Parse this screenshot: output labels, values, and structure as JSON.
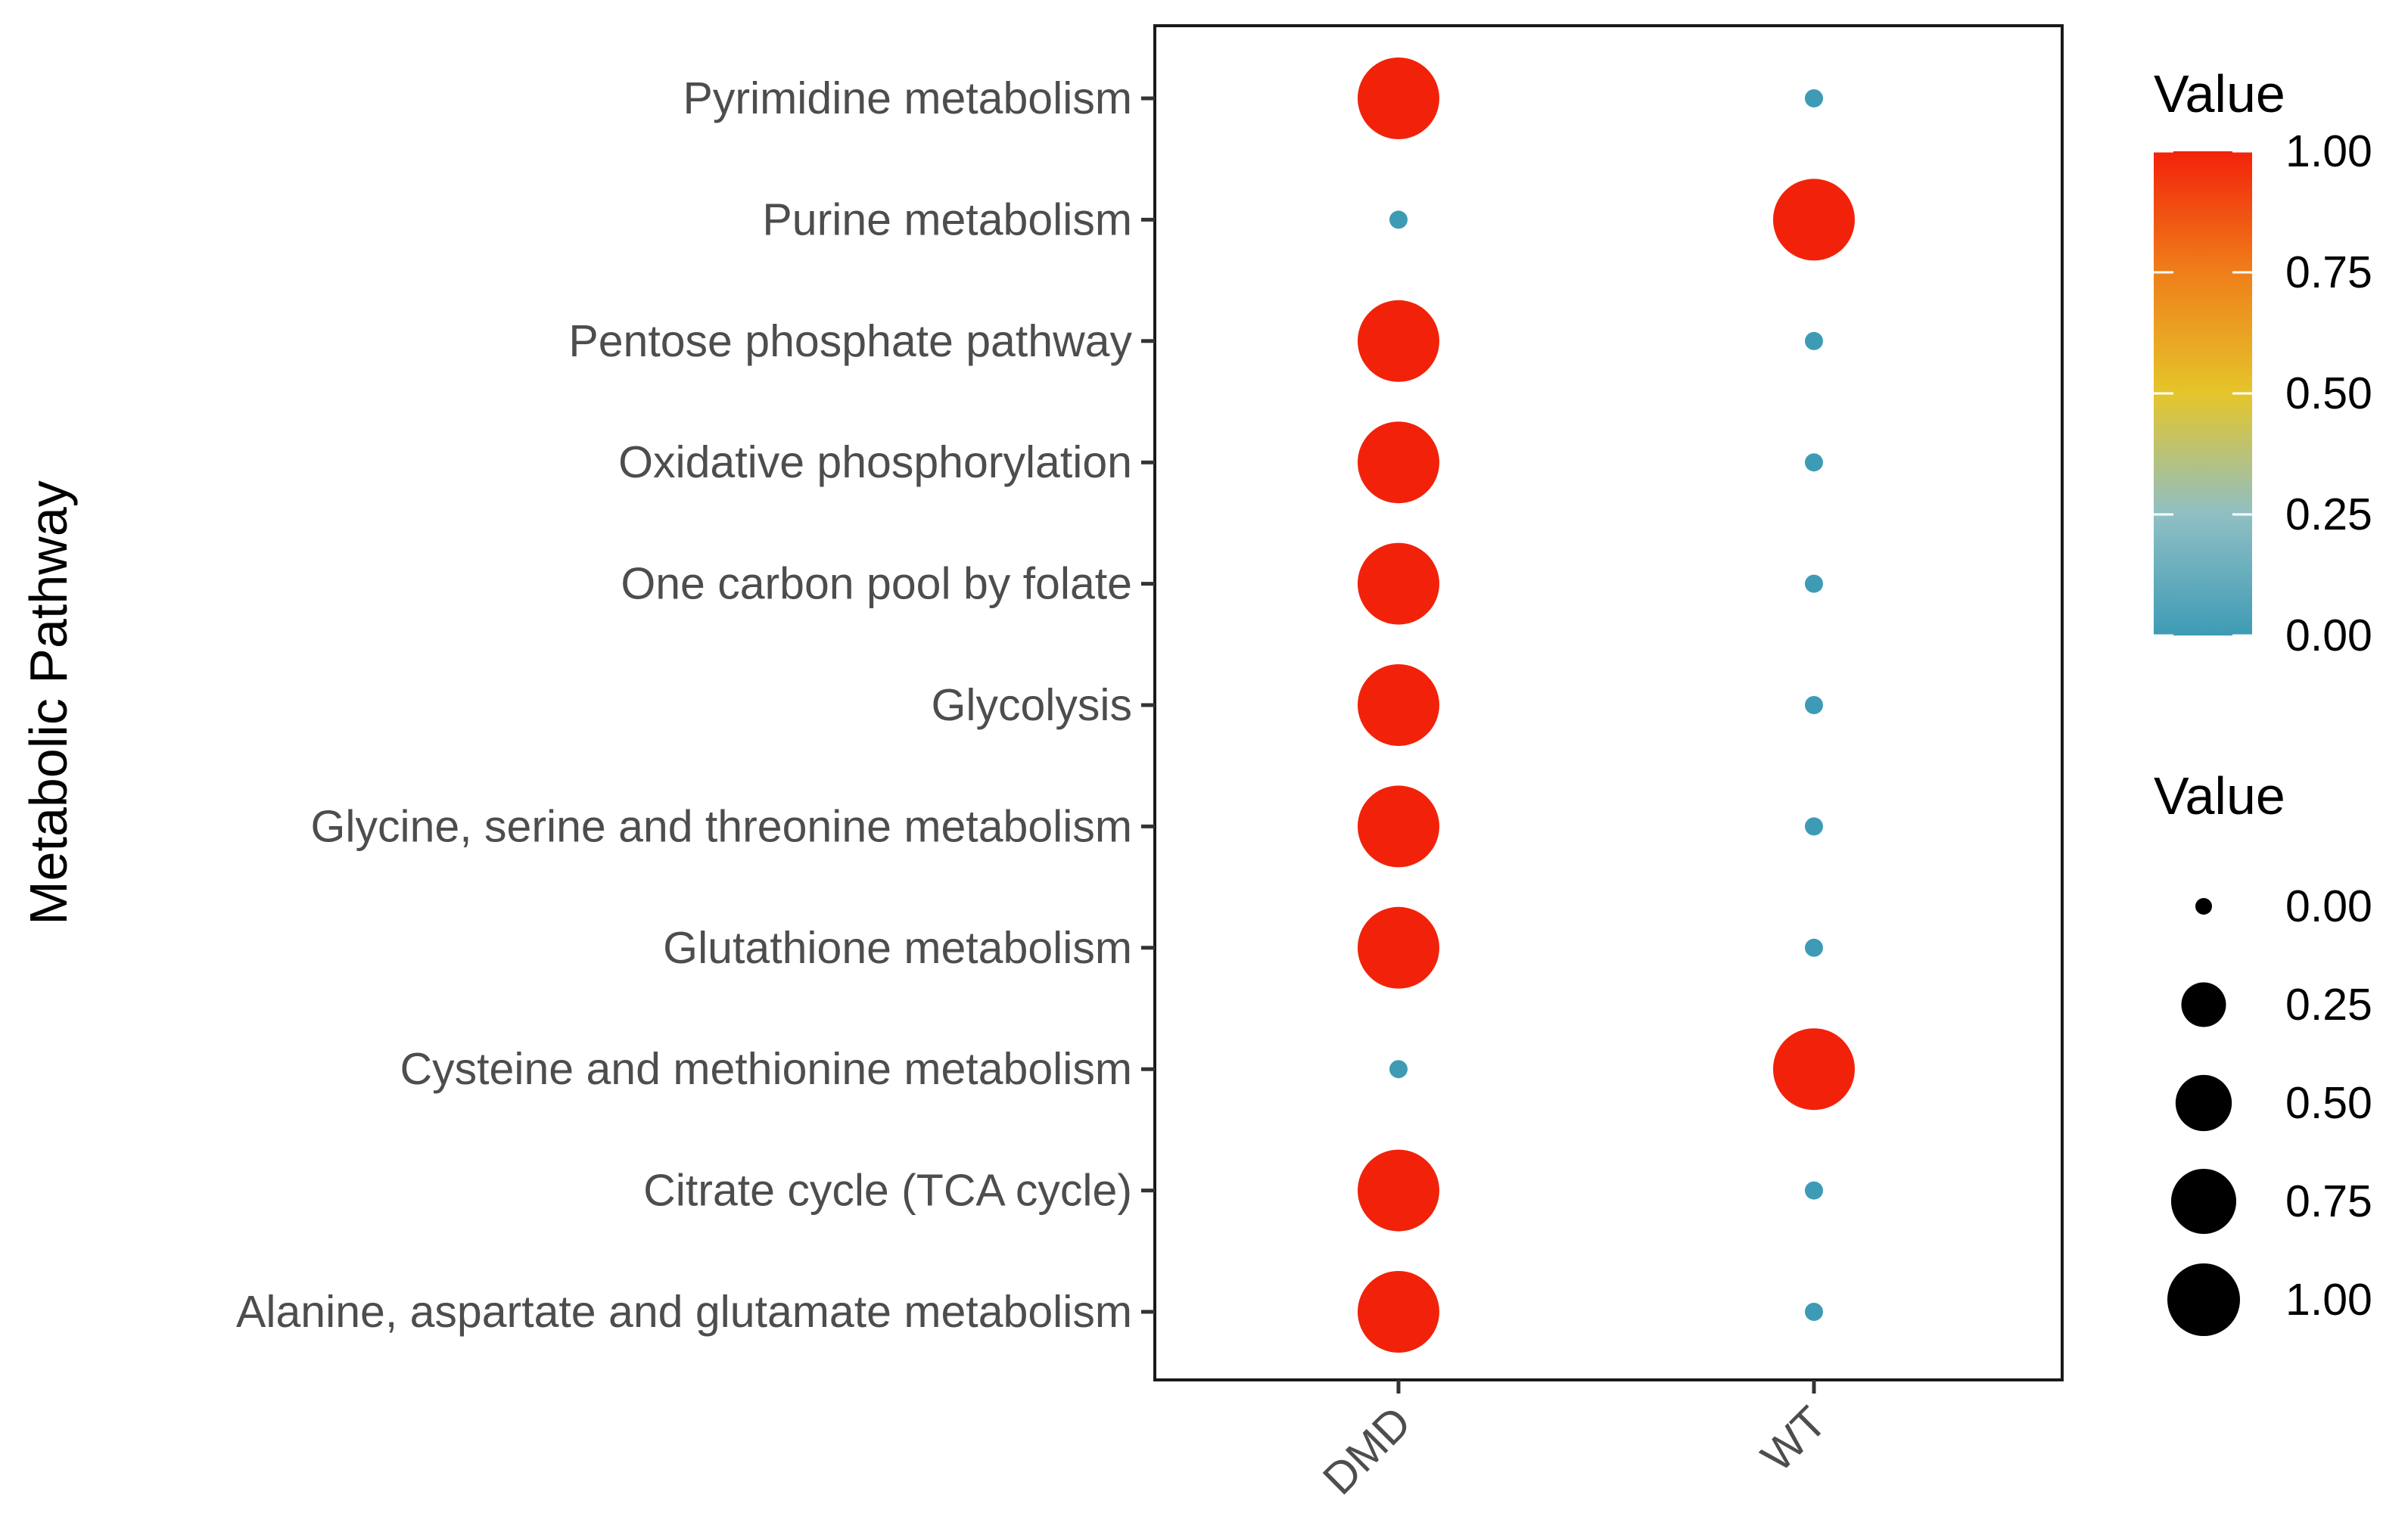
{
  "chart_data": {
    "type": "dot",
    "ylabel": "Metabolic Pathway",
    "xlabel": "",
    "categories_x": [
      "DMD",
      "WT"
    ],
    "categories_y": [
      "Pyrimidine metabolism",
      "Purine metabolism",
      "Pentose phosphate pathway",
      "Oxidative phosphorylation",
      "One carbon pool by folate",
      "Glycolysis",
      "Glycine, serine and threonine metabolism",
      "Glutathione metabolism",
      "Cysteine and methionine metabolism",
      "Citrate cycle (TCA cycle)",
      "Alanine, aspartate and glutamate metabolism"
    ],
    "series": [
      {
        "name": "DMD",
        "values": [
          1,
          0,
          1,
          1,
          1,
          1,
          1,
          1,
          0,
          1,
          1
        ]
      },
      {
        "name": "WT",
        "values": [
          0,
          1,
          0,
          0,
          0,
          0,
          0,
          0,
          1,
          0,
          0
        ]
      }
    ],
    "value_range": [
      0,
      1
    ],
    "color_scale": {
      "low": "#3e9bb5",
      "mid_low": "#8fbfc4",
      "mid": "#e5c52a",
      "mid_high": "#ef7f1a",
      "high": "#f2220a"
    },
    "legend_color": {
      "title": "Value",
      "ticks": [
        "1.00",
        "0.75",
        "0.50",
        "0.25",
        "0.00"
      ]
    },
    "legend_size": {
      "title": "Value",
      "ticks": [
        "0.00",
        "0.25",
        "0.50",
        "0.75",
        "1.00"
      ],
      "tick_values": [
        0,
        0.25,
        0.5,
        0.75,
        1.0
      ]
    },
    "grid": false,
    "legend_position": "right"
  }
}
